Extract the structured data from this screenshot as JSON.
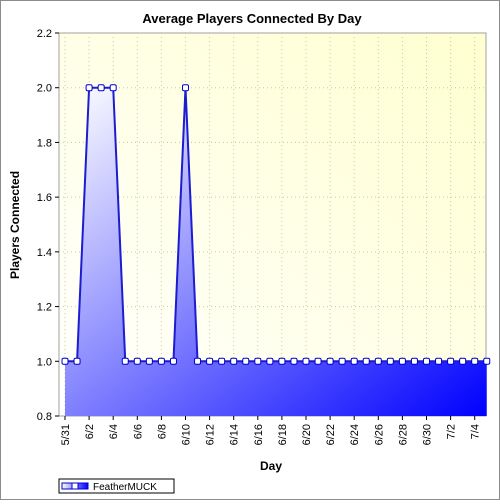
{
  "chart_data": {
    "type": "area",
    "title": "Average Players Connected By Day",
    "xlabel": "Day",
    "ylabel": "Players Connected",
    "ylim": [
      0.8,
      2.2
    ],
    "yticks": [
      "0.8",
      "1.0",
      "1.2",
      "1.4",
      "1.6",
      "1.8",
      "2.0",
      "2.2"
    ],
    "xticks": [
      "5/31",
      "6/2",
      "6/4",
      "6/6",
      "6/8",
      "6/10",
      "6/12",
      "6/14",
      "6/16",
      "6/18",
      "6/20",
      "6/22",
      "6/24",
      "6/26",
      "6/28",
      "6/30",
      "7/2",
      "7/4"
    ],
    "grid": true,
    "legend_position": "bottom-left",
    "colors": {
      "series": "#0000ff",
      "line": "#1c1cd0",
      "plot_bg_light": "#ffffff",
      "plot_bg_warm": "#ffffd0"
    },
    "series": [
      {
        "name": "FeatherMUCK",
        "x": [
          "5/31",
          "6/1",
          "6/2",
          "6/3",
          "6/4",
          "6/5",
          "6/6",
          "6/7",
          "6/8",
          "6/9",
          "6/10",
          "6/11",
          "6/12",
          "6/13",
          "6/14",
          "6/15",
          "6/16",
          "6/17",
          "6/18",
          "6/19",
          "6/20",
          "6/21",
          "6/22",
          "6/23",
          "6/24",
          "6/25",
          "6/26",
          "6/27",
          "6/28",
          "6/29",
          "6/30",
          "7/1",
          "7/2",
          "7/3",
          "7/4",
          "7/5"
        ],
        "values": [
          1.0,
          1.0,
          2.0,
          2.0,
          2.0,
          1.0,
          1.0,
          1.0,
          1.0,
          1.0,
          2.0,
          1.0,
          1.0,
          1.0,
          1.0,
          1.0,
          1.0,
          1.0,
          1.0,
          1.0,
          1.0,
          1.0,
          1.0,
          1.0,
          1.0,
          1.0,
          1.0,
          1.0,
          1.0,
          1.0,
          1.0,
          1.0,
          1.0,
          1.0,
          1.0,
          1.0
        ]
      }
    ]
  }
}
